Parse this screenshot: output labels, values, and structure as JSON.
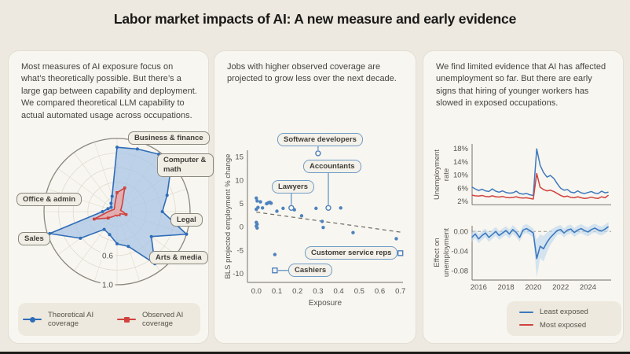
{
  "page": {
    "title": "Labor market impacts of AI: A new measure and early evidence",
    "background": "#EDE9E0",
    "panel_background": "#F8F6F0"
  },
  "colors": {
    "blue": "#3E79BE",
    "red": "#D0423E",
    "blue_fill": "#A6C4E5",
    "red_fill": "#F0A29D",
    "band": "#BFD8EE",
    "axis": "#8B887F",
    "tick_text": "#55534B"
  },
  "panels": {
    "radar": {
      "description": "Most measures of AI exposure focus on what’s theoretically possible. But there’s a large gap between capability and deployment. We compared theoretical LLM capability to actual automated usage across occupations."
    },
    "scatter": {
      "description": "Jobs with higher observed coverage are projected to grow less over the next decade."
    },
    "lines": {
      "description": "We find limited evidence that AI has affected unemployment so far. But there are early signs that hiring of younger workers has slowed in exposed occupations."
    }
  },
  "chart_data": [
    {
      "id": "radar",
      "type": "radar",
      "n_spokes": 20,
      "rings": [
        0.2,
        0.4,
        0.6,
        0.8,
        1.0
      ],
      "ring_labels": [
        {
          "text": "0.6",
          "r": 0.6
        },
        {
          "text": "1.0",
          "r": 1.0
        }
      ],
      "axis_labels": [
        "Business & finance",
        "Computer & math",
        "Legal",
        "Arts & media",
        "Sales",
        "Office & admin"
      ],
      "series": [
        {
          "name": "Theoretical AI coverage",
          "color": "#2F6CB8",
          "fill": "#A6C4E5",
          "marker": "circle",
          "values": [
            0.88,
            0.9,
            0.97,
            0.9,
            0.72,
            0.62,
            1.0,
            0.58,
            0.88,
            0.5,
            0.44,
            0.33,
            0.3,
            0.62,
            0.97,
            0.2,
            0.13,
            0.1,
            0.14,
            0.22
          ]
        },
        {
          "name": "Observed AI coverage",
          "color": "#D0423E",
          "fill": "#F0A29D",
          "marker": "square",
          "values": [
            0.26,
            0.34,
            0.12,
            0.07,
            0.05,
            0.08,
            0.13,
            0.05,
            0.07,
            0.05,
            0.06,
            0.05,
            0.08,
            0.15,
            0.33,
            0.12,
            0.07,
            0.05,
            0.06,
            0.1
          ]
        }
      ]
    },
    {
      "id": "scatter",
      "type": "scatter",
      "xlabel": "Exposure",
      "ylabel": "BLS projected employment % change",
      "x_ticks": [
        0.0,
        0.1,
        0.2,
        0.3,
        0.4,
        0.5,
        0.6,
        0.7
      ],
      "y_ticks": [
        15,
        10,
        5,
        0,
        -5,
        -10
      ],
      "xlim": [
        0,
        0.75
      ],
      "ylim": [
        -10,
        15
      ],
      "point_color": "#4E82BE",
      "points": [
        [
          0.0,
          6.2
        ],
        [
          0.004,
          5.6
        ],
        [
          0.008,
          4.2
        ],
        [
          0.0,
          3.8
        ],
        [
          0.02,
          5.4
        ],
        [
          0.03,
          4.1
        ],
        [
          0.05,
          5.0
        ],
        [
          0.058,
          5.2
        ],
        [
          0.066,
          5.3
        ],
        [
          0.072,
          5.1
        ],
        [
          0.0,
          1.0
        ],
        [
          0.004,
          0.6
        ],
        [
          0.0,
          0.2
        ],
        [
          0.004,
          -0.2
        ],
        [
          0.1,
          3.4
        ],
        [
          0.13,
          4.0
        ],
        [
          0.185,
          3.7
        ],
        [
          0.22,
          2.4
        ],
        [
          0.29,
          4.0
        ],
        [
          0.41,
          4.1
        ],
        [
          0.32,
          1.2
        ],
        [
          0.325,
          -0.1
        ],
        [
          0.47,
          -1.2
        ],
        [
          0.68,
          -2.5
        ],
        [
          0.09,
          -5.9
        ]
      ],
      "trend": {
        "x1": 0.0,
        "y1": 3.2,
        "x2": 0.71,
        "y2": -1.15,
        "style": "dashed"
      },
      "annotations": [
        {
          "label": "Software developers",
          "x": 0.3,
          "y": 15.8,
          "marker": "circle"
        },
        {
          "label": "Accountants",
          "x": 0.35,
          "y": 4.1,
          "marker": "circle"
        },
        {
          "label": "Lawyers",
          "x": 0.17,
          "y": 4.1,
          "marker": "circle"
        },
        {
          "label": "Customer service reps",
          "x": 0.7,
          "y": -5.6,
          "marker": "square"
        },
        {
          "label": "Cashiers",
          "x": 0.09,
          "y": -9.3,
          "marker": "square"
        }
      ]
    },
    {
      "id": "unemployment",
      "type": "line",
      "ylabel_line1": "Unemployment",
      "ylabel_line2": "rate",
      "y_ticks": [
        {
          "label": "18%",
          "v": 18
        },
        {
          "label": "14%",
          "v": 14
        },
        {
          "label": "10%",
          "v": 10
        },
        {
          "label": "6%",
          "v": 6
        },
        {
          "label": "2%",
          "v": 2
        }
      ],
      "ylim": [
        1,
        19.5
      ],
      "x": [
        2015.5,
        2015.75,
        2016,
        2016.25,
        2016.5,
        2016.75,
        2017,
        2017.25,
        2017.5,
        2017.75,
        2018,
        2018.25,
        2018.5,
        2018.75,
        2019,
        2019.25,
        2019.5,
        2019.75,
        2020,
        2020.25,
        2020.5,
        2020.75,
        2021,
        2021.25,
        2021.5,
        2021.75,
        2022,
        2022.25,
        2022.5,
        2022.75,
        2023,
        2023.25,
        2023.5,
        2023.75,
        2024,
        2024.25,
        2024.5,
        2024.75,
        2025,
        2025.25,
        2025.5
      ],
      "series": [
        {
          "name": "Least exposed",
          "color": "#3E79BE",
          "values": [
            6.4,
            5.8,
            5.3,
            5.7,
            5.2,
            5.0,
            5.8,
            5.1,
            4.8,
            5.2,
            4.7,
            4.5,
            4.6,
            5.1,
            4.4,
            4.2,
            4.4,
            4.0,
            3.8,
            18.0,
            13.0,
            10.8,
            9.4,
            9.9,
            9.0,
            7.4,
            6.0,
            5.4,
            5.6,
            4.8,
            4.6,
            5.2,
            4.6,
            4.4,
            4.7,
            5.0,
            4.5,
            4.4,
            5.1,
            4.6,
            4.8
          ]
        },
        {
          "name": "Most exposed",
          "color": "#D0423E",
          "values": [
            3.9,
            3.7,
            3.6,
            3.8,
            3.5,
            3.4,
            3.7,
            3.4,
            3.3,
            3.5,
            3.2,
            3.1,
            3.2,
            3.4,
            3.1,
            3.0,
            3.1,
            2.9,
            2.7,
            10.5,
            6.3,
            5.6,
            5.2,
            5.4,
            5.0,
            4.4,
            3.8,
            3.4,
            3.6,
            3.2,
            3.1,
            3.4,
            3.1,
            2.9,
            3.0,
            3.3,
            3.0,
            2.9,
            3.4,
            3.1,
            3.9
          ]
        }
      ]
    },
    {
      "id": "effect",
      "type": "line-band",
      "ylabel_line1": "Effect on",
      "ylabel_line2": "unemployment",
      "y_ticks": [
        {
          "label": "0.00",
          "v": 0.0
        },
        {
          "label": "-0.04",
          "v": -0.04
        },
        {
          "label": "-0.08",
          "v": -0.08
        }
      ],
      "x_ticks": [
        2016,
        2018,
        2020,
        2022,
        2024
      ],
      "zero_line": true,
      "line_color": "#3E79BE",
      "band_color": "#BFD8EE",
      "x": [
        2015.5,
        2015.75,
        2016,
        2016.25,
        2016.5,
        2016.75,
        2017,
        2017.25,
        2017.5,
        2017.75,
        2018,
        2018.25,
        2018.5,
        2018.75,
        2019,
        2019.25,
        2019.5,
        2019.75,
        2020,
        2020.25,
        2020.5,
        2020.75,
        2021,
        2021.25,
        2021.5,
        2021.75,
        2022,
        2022.25,
        2022.5,
        2022.75,
        2023,
        2023.25,
        2023.5,
        2023.75,
        2024,
        2024.25,
        2024.5,
        2024.75,
        2025,
        2025.25,
        2025.5
      ],
      "values": [
        -0.012,
        -0.005,
        -0.015,
        -0.008,
        -0.003,
        -0.012,
        -0.006,
        0.0,
        -0.008,
        -0.003,
        0.002,
        -0.005,
        0.004,
        -0.002,
        -0.012,
        0.003,
        0.006,
        0.002,
        -0.003,
        -0.055,
        -0.03,
        -0.035,
        -0.022,
        -0.012,
        -0.005,
        0.002,
        0.004,
        -0.003,
        0.003,
        0.005,
        -0.002,
        0.003,
        0.006,
        0.002,
        -0.001,
        0.004,
        0.007,
        0.003,
        0.001,
        0.005,
        0.01
      ],
      "ci": [
        0.009,
        0.009,
        0.009,
        0.009,
        0.009,
        0.009,
        0.009,
        0.009,
        0.009,
        0.009,
        0.009,
        0.009,
        0.009,
        0.009,
        0.009,
        0.009,
        0.009,
        0.009,
        0.009,
        0.038,
        0.024,
        0.026,
        0.02,
        0.015,
        0.012,
        0.009,
        0.009,
        0.009,
        0.009,
        0.009,
        0.009,
        0.009,
        0.009,
        0.009,
        0.009,
        0.009,
        0.009,
        0.009,
        0.009,
        0.009,
        0.009
      ]
    }
  ],
  "legends": {
    "radar_panel": [
      {
        "label": "Theoretical AI coverage"
      },
      {
        "label": "Observed AI coverage"
      }
    ],
    "lines_panel": [
      {
        "label": "Least exposed"
      },
      {
        "label": "Most exposed"
      }
    ]
  }
}
